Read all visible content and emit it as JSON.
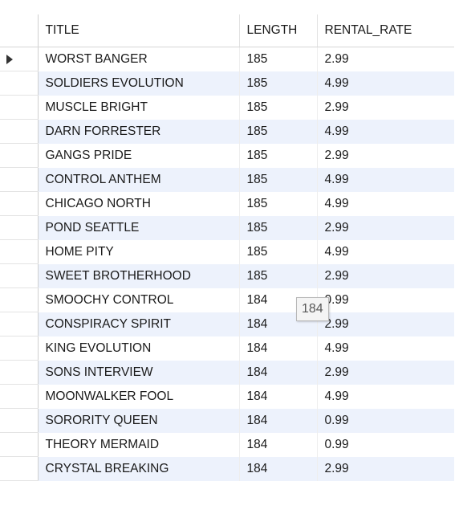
{
  "grid": {
    "columns": [
      "TITLE",
      "LENGTH",
      "RENTAL_RATE"
    ],
    "rows": [
      {
        "title": "WORST BANGER",
        "length": "185",
        "rental_rate": "2.99"
      },
      {
        "title": "SOLDIERS EVOLUTION",
        "length": "185",
        "rental_rate": "4.99"
      },
      {
        "title": "MUSCLE BRIGHT",
        "length": "185",
        "rental_rate": "2.99"
      },
      {
        "title": "DARN FORRESTER",
        "length": "185",
        "rental_rate": "4.99"
      },
      {
        "title": "GANGS PRIDE",
        "length": "185",
        "rental_rate": "2.99"
      },
      {
        "title": "CONTROL ANTHEM",
        "length": "185",
        "rental_rate": "4.99"
      },
      {
        "title": "CHICAGO NORTH",
        "length": "185",
        "rental_rate": "4.99"
      },
      {
        "title": "POND SEATTLE",
        "length": "185",
        "rental_rate": "2.99"
      },
      {
        "title": "HOME PITY",
        "length": "185",
        "rental_rate": "4.99"
      },
      {
        "title": "SWEET BROTHERHOOD",
        "length": "185",
        "rental_rate": "2.99"
      },
      {
        "title": "SMOOCHY CONTROL",
        "length": "184",
        "rental_rate": "0.99"
      },
      {
        "title": "CONSPIRACY SPIRIT",
        "length": "184",
        "rental_rate": "2.99"
      },
      {
        "title": "KING EVOLUTION",
        "length": "184",
        "rental_rate": "4.99"
      },
      {
        "title": "SONS INTERVIEW",
        "length": "184",
        "rental_rate": "2.99"
      },
      {
        "title": "MOONWALKER FOOL",
        "length": "184",
        "rental_rate": "4.99"
      },
      {
        "title": "SORORITY QUEEN",
        "length": "184",
        "rental_rate": "0.99"
      },
      {
        "title": "THEORY MERMAID",
        "length": "184",
        "rental_rate": "0.99"
      },
      {
        "title": "CRYSTAL BREAKING",
        "length": "184",
        "rental_rate": "2.99"
      }
    ],
    "current_row_index": 0,
    "row_pointer_icon": "current-row-pointer-icon",
    "tooltip": "184",
    "colors": {
      "alt_row": "#edf2fc",
      "row": "#ffffff",
      "grid_line": "#d6d6d6"
    }
  }
}
